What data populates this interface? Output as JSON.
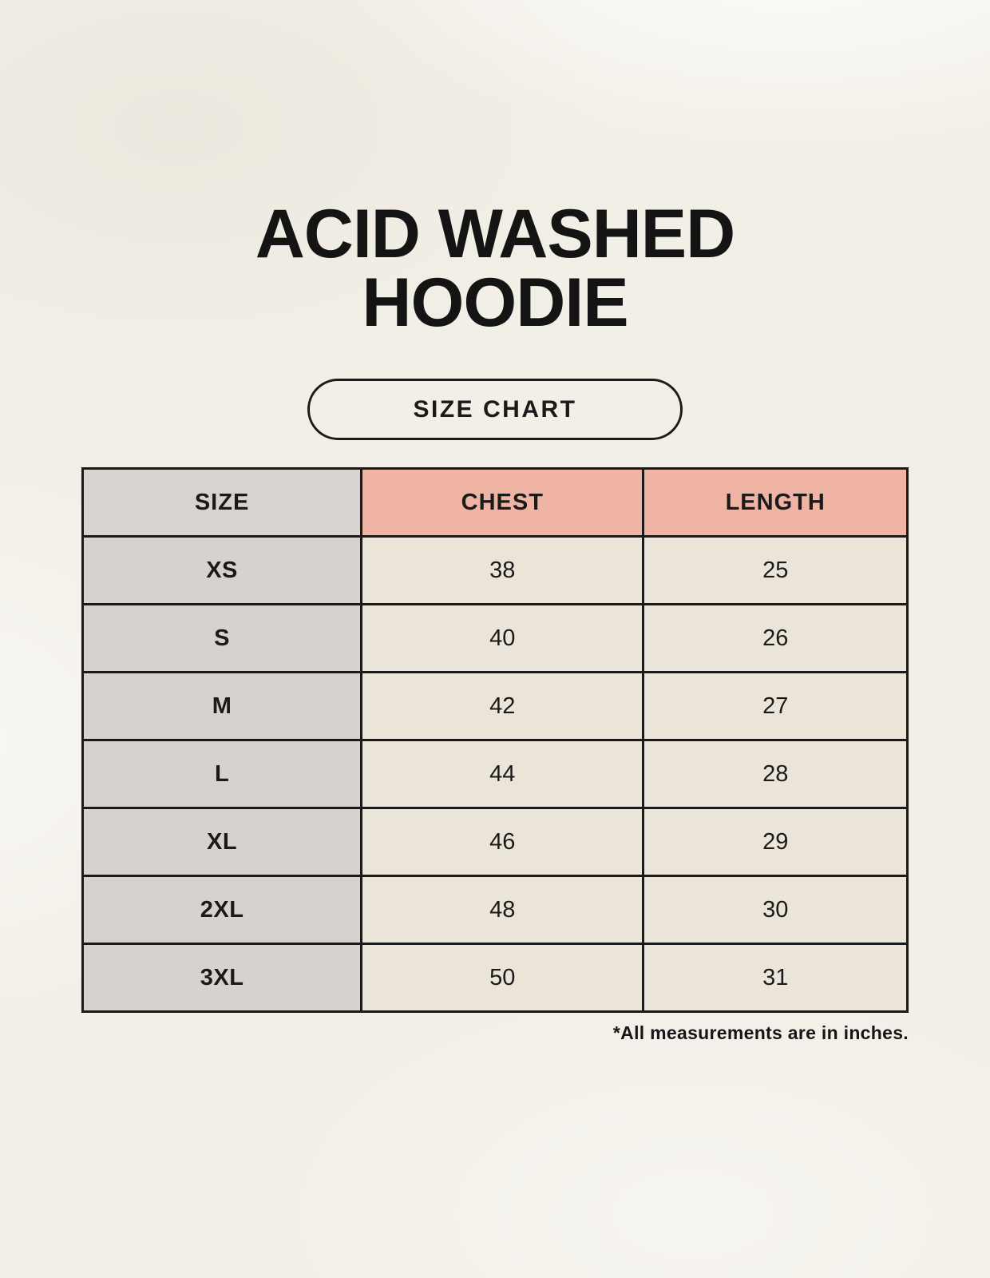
{
  "header": {
    "title_line1": "ACID WASHED",
    "title_line2": "HOODIE",
    "badge_label": "SIZE CHART"
  },
  "footer": {
    "note": "*All measurements are in inches."
  },
  "colors": {
    "background": "#f2efe7",
    "header_accent": "#efb4a3",
    "header_neutral": "#d9d3cf",
    "row_label_bg": "#d8d2ce",
    "cell_bg": "#eae4d9",
    "border": "#1a1a1a",
    "text": "#1a1a1a"
  },
  "chart_data": {
    "type": "table",
    "title": "ACID WASHED HOODIE",
    "columns": [
      "SIZE",
      "CHEST",
      "LENGTH"
    ],
    "rows": [
      [
        "XS",
        "38",
        "25"
      ],
      [
        "S",
        "40",
        "26"
      ],
      [
        "M",
        "42",
        "27"
      ],
      [
        "L",
        "44",
        "28"
      ],
      [
        "XL",
        "46",
        "29"
      ],
      [
        "2XL",
        "48",
        "30"
      ],
      [
        "3XL",
        "50",
        "31"
      ]
    ],
    "units_note": "*All measurements are in inches."
  }
}
